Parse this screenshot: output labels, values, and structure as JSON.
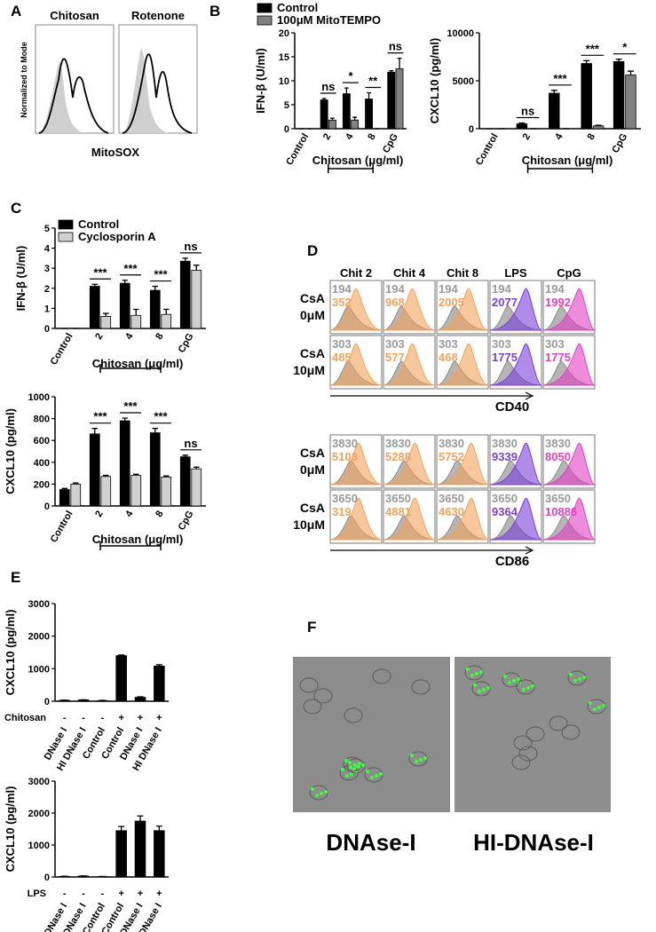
{
  "panel_labels": [
    "A",
    "B",
    "C",
    "D",
    "E",
    "F"
  ],
  "panel_a": {
    "titles": [
      "Chitosan",
      "Rotenone"
    ],
    "y_label": "Normalized to Mode",
    "x_label": "MitoSOX"
  },
  "chart_data": [
    {
      "type": "bar",
      "y_label": "IFN-β (U/ml)",
      "x_label": "Chitosan (μg/ml)",
      "categories": [
        "Control",
        "2",
        "4",
        "8",
        "CpG"
      ],
      "series": [
        {
          "name": "Control",
          "color": "#000000",
          "values": [
            0,
            6,
            7.3,
            6.2,
            11.8
          ],
          "errors": [
            0,
            0.3,
            1.2,
            1.3,
            0.3
          ]
        },
        {
          "name": "100μM MitoTEMPO",
          "color": "#808080",
          "values": [
            0,
            1.8,
            1.8,
            0,
            12.5
          ],
          "errors": [
            0,
            0.4,
            0.6,
            0,
            2.2
          ]
        }
      ],
      "significance": [
        null,
        "ns",
        "*",
        "**",
        "ns"
      ],
      "ylim": [
        0,
        20
      ],
      "yticks": [
        0,
        5,
        10,
        15,
        20
      ]
    },
    {
      "type": "bar",
      "y_label": "CXCL10 (pg/ml)",
      "x_label": "Chitosan (μg/ml)",
      "categories": [
        "Control",
        "2",
        "4",
        "8",
        "CpG"
      ],
      "series": [
        {
          "color": "#000000",
          "values": [
            0,
            500,
            3700,
            6800,
            7000
          ],
          "errors": [
            0,
            100,
            300,
            300,
            250
          ]
        },
        {
          "color": "#808080",
          "values": [
            0,
            0,
            0,
            300,
            5600
          ],
          "errors": [
            0,
            0,
            0,
            60,
            400
          ]
        }
      ],
      "significance": [
        null,
        "ns",
        "***",
        "***",
        "*"
      ],
      "ylim": [
        0,
        10000
      ],
      "yticks": [
        0,
        5000,
        10000
      ]
    },
    {
      "type": "bar",
      "y_label": "IFN-β (U/ml)",
      "x_label": "Chitosan (μg/ml)",
      "categories": [
        "Control",
        "2",
        "4",
        "8",
        "CpG"
      ],
      "series": [
        {
          "name": "Control",
          "color": "#000000",
          "values": [
            0,
            2.1,
            2.25,
            1.9,
            3.35
          ],
          "errors": [
            0,
            0.1,
            0.15,
            0.2,
            0.15
          ]
        },
        {
          "name": "Cyclosporin A",
          "color": "#d0d0d0",
          "values": [
            0,
            0.6,
            0.65,
            0.7,
            2.9
          ],
          "errors": [
            0,
            0.15,
            0.3,
            0.25,
            0.25
          ]
        }
      ],
      "significance": [
        null,
        "***",
        "***",
        "***",
        "ns"
      ],
      "ylim": [
        0,
        5
      ],
      "yticks": [
        0,
        1,
        2,
        3,
        4,
        5
      ]
    },
    {
      "type": "bar",
      "y_label": "CXCL10 (pg/ml)",
      "x_label": "Chitosan (μg/ml)",
      "categories": [
        "Control",
        "2",
        "4",
        "8",
        "CpG"
      ],
      "series": [
        {
          "color": "#000000",
          "values": [
            150,
            660,
            780,
            670,
            450
          ],
          "errors": [
            10,
            50,
            25,
            40,
            15
          ]
        },
        {
          "color": "#d0d0d0",
          "values": [
            200,
            270,
            280,
            265,
            340
          ],
          "errors": [
            10,
            10,
            10,
            10,
            15
          ]
        }
      ],
      "significance": [
        null,
        "***",
        "***",
        "***",
        "ns"
      ],
      "ylim": [
        0,
        1000
      ],
      "yticks": [
        0,
        200,
        400,
        600,
        800,
        1000
      ]
    },
    {
      "type": "bar",
      "y_label": "CXCL10 (pg/ml)",
      "categories": [
        "DNase I",
        "HI DNase I",
        "Control",
        "Control",
        "DNase I",
        "HI DNase I"
      ],
      "treatment_label": "Chitosan",
      "treatment_signs": [
        "-",
        "-",
        "-",
        "+",
        "+",
        "+"
      ],
      "color": "#000000",
      "values": [
        30,
        40,
        20,
        1400,
        120,
        1080
      ],
      "errors": [
        5,
        5,
        5,
        20,
        15,
        40
      ],
      "ylim": [
        0,
        3000
      ],
      "yticks": [
        0,
        1000,
        2000,
        3000
      ]
    },
    {
      "type": "bar",
      "y_label": "CXCL10 (pg/ml)",
      "categories": [
        "DNase I",
        "HI DNase I",
        "Control",
        "Control",
        "DNase I",
        "HI DNase I"
      ],
      "treatment_label": "LPS",
      "treatment_signs": [
        "-",
        "-",
        "-",
        "+",
        "+",
        "+"
      ],
      "color": "#000000",
      "values": [
        20,
        30,
        10,
        1450,
        1750,
        1450
      ],
      "errors": [
        5,
        5,
        5,
        130,
        160,
        140
      ],
      "ylim": [
        0,
        3000
      ],
      "yticks": [
        0,
        1000,
        2000,
        3000
      ]
    }
  ],
  "panel_d": {
    "columns": [
      "Chit 2",
      "Chit 4",
      "Chit 8",
      "LPS",
      "CpG"
    ],
    "column_colors": [
      "#f2a25c",
      "#f2a25c",
      "#f2a25c",
      "#7a3fd8",
      "#e23fc4"
    ],
    "rows": [
      [
        "CsA",
        "0μM"
      ],
      [
        "CsA",
        "10μM"
      ]
    ],
    "markers": [
      {
        "name": "CD40",
        "gray": [
          194,
          303
        ],
        "colored": [
          [
            352,
            968,
            2005,
            2077,
            1992
          ],
          [
            485,
            577,
            468,
            1775,
            1775
          ]
        ]
      },
      {
        "name": "CD86",
        "gray": [
          3830,
          3650
        ],
        "colored": [
          [
            5103,
            5288,
            5752,
            9339,
            8050
          ],
          [
            319,
            4881,
            4630,
            9364,
            10886
          ]
        ]
      }
    ]
  },
  "panel_f": {
    "labels": [
      "DNAse-I",
      "HI-DNAse-I"
    ]
  }
}
